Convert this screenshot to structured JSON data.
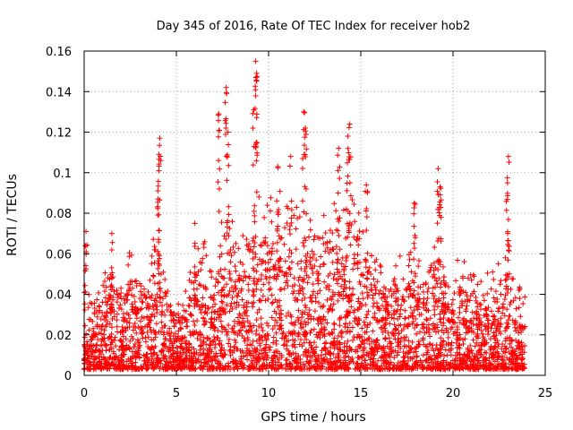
{
  "chart_data": {
    "type": "scatter",
    "title": "Day 345 of 2016, Rate Of TEC Index for receiver hob2",
    "xlabel": "GPS time / hours",
    "ylabel": "ROTI / TECUs",
    "xlim": [
      0,
      25
    ],
    "ylim": [
      0,
      0.16
    ],
    "xticks": [
      "0",
      "5",
      "10",
      "15",
      "20",
      "25"
    ],
    "yticks": [
      "0",
      "0.02",
      "0.04",
      "0.06",
      "0.08",
      "0.1",
      "0.12",
      "0.14",
      "0.16"
    ],
    "grid": true,
    "marker": "plus",
    "series_color": "#ff0000",
    "x_extent": [
      0,
      23.9
    ],
    "envelope": [
      [
        0.0,
        0.036
      ],
      [
        0.5,
        0.03
      ],
      [
        1.0,
        0.038
      ],
      [
        1.5,
        0.055
      ],
      [
        2.0,
        0.04
      ],
      [
        2.5,
        0.052
      ],
      [
        3.0,
        0.04
      ],
      [
        3.5,
        0.048
      ],
      [
        4.0,
        0.058
      ],
      [
        4.5,
        0.035
      ],
      [
        5.0,
        0.03
      ],
      [
        5.5,
        0.035
      ],
      [
        6.0,
        0.05
      ],
      [
        6.5,
        0.055
      ],
      [
        7.0,
        0.05
      ],
      [
        7.5,
        0.06
      ],
      [
        8.0,
        0.075
      ],
      [
        8.5,
        0.055
      ],
      [
        9.0,
        0.065
      ],
      [
        9.5,
        0.075
      ],
      [
        10.0,
        0.08
      ],
      [
        10.5,
        0.075
      ],
      [
        11.0,
        0.07
      ],
      [
        11.5,
        0.075
      ],
      [
        12.0,
        0.065
      ],
      [
        12.5,
        0.065
      ],
      [
        13.0,
        0.065
      ],
      [
        13.5,
        0.075
      ],
      [
        14.0,
        0.07
      ],
      [
        14.5,
        0.075
      ],
      [
        15.0,
        0.07
      ],
      [
        15.5,
        0.055
      ],
      [
        16.0,
        0.05
      ],
      [
        16.5,
        0.045
      ],
      [
        17.0,
        0.045
      ],
      [
        17.5,
        0.05
      ],
      [
        18.0,
        0.055
      ],
      [
        18.5,
        0.045
      ],
      [
        19.0,
        0.055
      ],
      [
        19.5,
        0.045
      ],
      [
        20.0,
        0.04
      ],
      [
        20.5,
        0.05
      ],
      [
        21.0,
        0.04
      ],
      [
        21.5,
        0.04
      ],
      [
        22.0,
        0.04
      ],
      [
        22.5,
        0.045
      ],
      [
        23.0,
        0.05
      ],
      [
        23.5,
        0.04
      ],
      [
        23.9,
        0.035
      ]
    ],
    "spikes": [
      {
        "x": 0.1,
        "y": 0.071
      },
      {
        "x": 1.5,
        "y": 0.07
      },
      {
        "x": 4.1,
        "y": 0.117
      },
      {
        "x": 4.05,
        "y": 0.109
      },
      {
        "x": 4.0,
        "y": 0.087
      },
      {
        "x": 6.0,
        "y": 0.075
      },
      {
        "x": 7.3,
        "y": 0.129
      },
      {
        "x": 7.7,
        "y": 0.142
      },
      {
        "x": 7.8,
        "y": 0.12
      },
      {
        "x": 9.3,
        "y": 0.155
      },
      {
        "x": 9.35,
        "y": 0.149
      },
      {
        "x": 9.2,
        "y": 0.131
      },
      {
        "x": 10.5,
        "y": 0.103
      },
      {
        "x": 11.2,
        "y": 0.108
      },
      {
        "x": 11.9,
        "y": 0.13
      },
      {
        "x": 12.0,
        "y": 0.122
      },
      {
        "x": 13.8,
        "y": 0.112
      },
      {
        "x": 14.4,
        "y": 0.124
      },
      {
        "x": 14.3,
        "y": 0.118
      },
      {
        "x": 15.3,
        "y": 0.094
      },
      {
        "x": 17.9,
        "y": 0.085
      },
      {
        "x": 19.2,
        "y": 0.102
      },
      {
        "x": 19.3,
        "y": 0.093
      },
      {
        "x": 23.0,
        "y": 0.108
      },
      {
        "x": 22.95,
        "y": 0.095
      }
    ]
  }
}
